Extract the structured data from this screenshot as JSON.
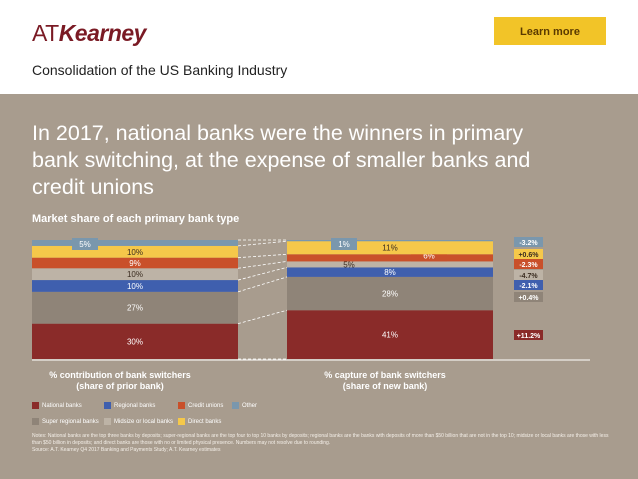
{
  "header": {
    "logo_prefix": "AT",
    "logo_main": "Kearney",
    "cta_label": "Learn more",
    "subtitle": "Consolidation of the US Banking Industry"
  },
  "headline": "In 2017, national banks were the winners in primary bank switching, at the expense of smaller banks and credit unions",
  "colors": {
    "national": "#8a2b29",
    "super_regional": "#8f8478",
    "midsize": "#bdb3a6",
    "regional": "#3f5fae",
    "credit_unions": "#c9502a",
    "direct": "#f5c84a",
    "other": "#7a97ad",
    "panel": "#a89c8e",
    "brand": "#7a1a24",
    "cta": "#f2c428"
  },
  "chart_data": {
    "type": "bar",
    "title": "Market share of each primary bank type",
    "stacked": true,
    "percent": true,
    "categories": [
      "% contribution of bank switchers (share of prior bank)",
      "% capture of bank switchers (share of new bank)"
    ],
    "category_labels": [
      [
        "% contribution of bank switchers",
        "(share of prior bank)"
      ],
      [
        "% capture of bank switchers",
        "(share of new bank)"
      ]
    ],
    "series": [
      {
        "name": "National banks",
        "key": "national",
        "values": [
          30,
          41
        ]
      },
      {
        "name": "Super regional banks",
        "key": "super_regional",
        "values": [
          27,
          28
        ]
      },
      {
        "name": "Regional banks",
        "key": "regional",
        "values": [
          10,
          8
        ]
      },
      {
        "name": "Midsize or local banks",
        "key": "midsize",
        "values": [
          10,
          5
        ]
      },
      {
        "name": "Credit unions",
        "key": "credit_unions",
        "values": [
          9,
          6
        ]
      },
      {
        "name": "Direct banks",
        "key": "direct",
        "values": [
          10,
          11
        ]
      },
      {
        "name": "Other",
        "key": "other",
        "values": [
          5,
          1
        ]
      }
    ],
    "value_labels": [
      [
        "30%",
        "27%",
        "10%",
        "10%",
        "9%",
        "10%",
        "5%"
      ],
      [
        "41%",
        "28%",
        "8%",
        "5%",
        "6%",
        "11%",
        "1%"
      ]
    ],
    "changes": [
      {
        "key": "national",
        "label": "+11.2%"
      },
      {
        "key": "super_regional",
        "label": "+0.4%"
      },
      {
        "key": "regional",
        "label": "-2.1%"
      },
      {
        "key": "midsize",
        "label": "-4.7%"
      },
      {
        "key": "credit_unions",
        "label": "-2.3%"
      },
      {
        "key": "direct",
        "label": "+0.6%"
      },
      {
        "key": "other",
        "label": "-3.2%"
      }
    ],
    "legend_position": "bottom-left"
  },
  "legend": [
    {
      "key": "national",
      "label": "National banks"
    },
    {
      "key": "regional",
      "label": "Regional banks"
    },
    {
      "key": "credit_unions",
      "label": "Credit unions"
    },
    {
      "key": "other",
      "label": "Other"
    },
    {
      "key": "super_regional",
      "label": "Super regional banks"
    },
    {
      "key": "midsize",
      "label": "Midsize or local banks"
    },
    {
      "key": "direct",
      "label": "Direct banks"
    }
  ],
  "notes": {
    "text": "Notes: National banks are the top three banks by deposits; super-regional banks are the top four to top 10 banks by deposits; regional banks are the banks with deposits of more than $50 billion that are not in the top 10; midsize or local banks are those with less than $50 billion in deposits; and direct banks are those with no or limited physical presence. Numbers may not resolve due to rounding.",
    "source": "Source: A.T. Kearney Q4 2017 Banking and Payments Study; A.T. Kearney estimates"
  }
}
